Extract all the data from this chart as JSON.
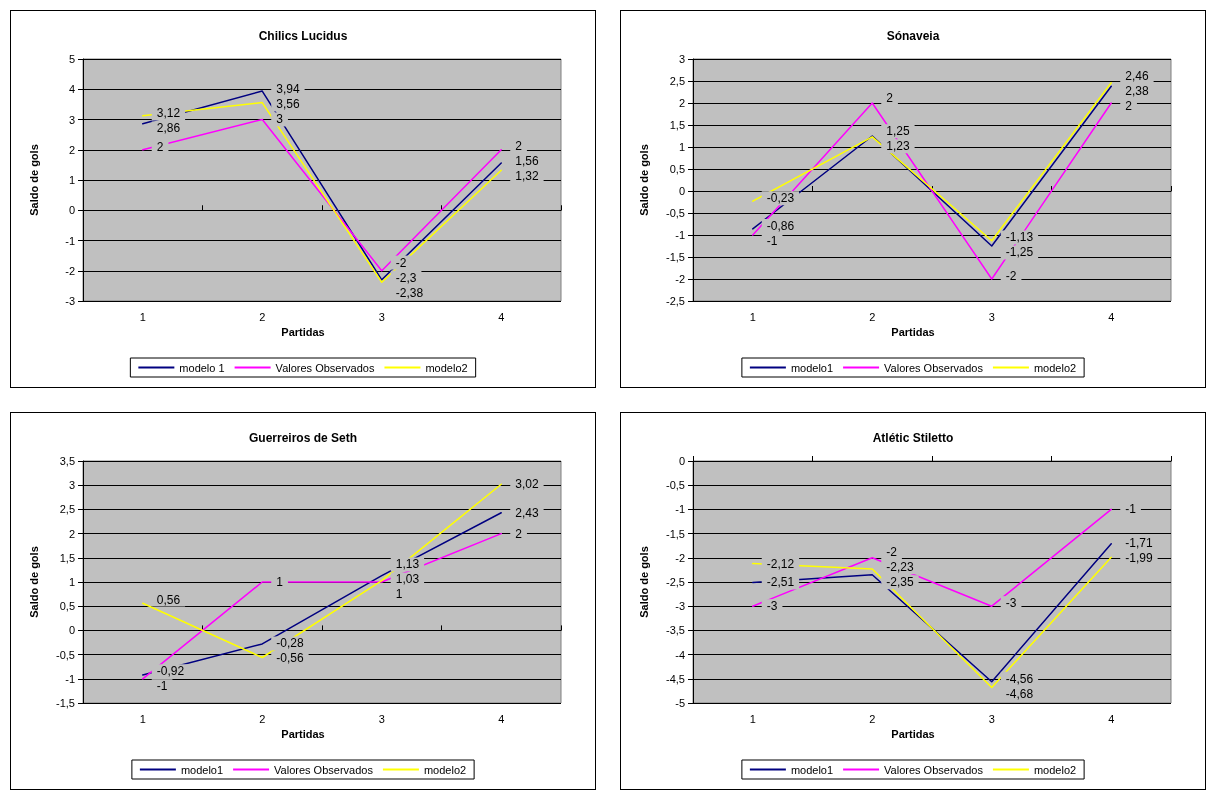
{
  "chart_data": [
    {
      "type": "line",
      "title": "Chilics Lucidus",
      "xlabel": "Partidas",
      "ylabel": "Saldo de gols",
      "categories": [
        "1",
        "2",
        "3",
        "4"
      ],
      "ylim": [
        -3,
        5
      ],
      "yticks": [
        -3,
        -2,
        -1,
        0,
        1,
        2,
        3,
        4,
        5
      ],
      "grid": "y",
      "legend": "bottom",
      "marker": "none",
      "series": [
        {
          "name": "modelo 1",
          "color": "#000080",
          "values": [
            2.86,
            3.94,
            -2.3,
            1.56
          ],
          "value_labels": [
            "2,86",
            "3,94",
            "-2,3",
            "1,56"
          ]
        },
        {
          "name": "Valores Observados",
          "color": "#ff00ff",
          "values": [
            2,
            3,
            -2,
            2
          ],
          "value_labels": [
            "2",
            "3",
            "-2",
            "2"
          ]
        },
        {
          "name": "modelo2",
          "color": "#ffff00",
          "values": [
            3.12,
            3.56,
            -2.38,
            1.32
          ],
          "value_labels": [
            "3,12",
            "3,56",
            "-2,38",
            "1,32"
          ]
        }
      ]
    },
    {
      "type": "line",
      "title": "Sónaveia",
      "xlabel": "Partidas",
      "ylabel": "Saldo de gols",
      "categories": [
        "1",
        "2",
        "3",
        "4"
      ],
      "ylim": [
        -2.5,
        3
      ],
      "yticks": [
        {
          "value": -2.5,
          "label": "-2,5"
        },
        -2,
        {
          "value": -1.5,
          "label": "-1,5"
        },
        -1,
        {
          "value": -0.5,
          "label": "-0,5"
        },
        0,
        {
          "value": 0.5,
          "label": "0,5"
        },
        1,
        {
          "value": 1.5,
          "label": "1,5"
        },
        2,
        {
          "value": 2.5,
          "label": "2,5"
        },
        3
      ],
      "grid": "y",
      "legend": "bottom",
      "marker": "none",
      "series": [
        {
          "name": "modelo1",
          "color": "#000080",
          "values": [
            -0.86,
            1.25,
            -1.25,
            2.38
          ],
          "value_labels": [
            "-0,86",
            "1,25",
            "-1,25",
            "2,38"
          ]
        },
        {
          "name": "Valores Observados",
          "color": "#ff00ff",
          "values": [
            -1,
            2,
            -2,
            2
          ],
          "value_labels": [
            "-1",
            "2",
            "-2",
            "2"
          ]
        },
        {
          "name": "modelo2",
          "color": "#ffff00",
          "values": [
            -0.23,
            1.23,
            -1.13,
            2.46
          ],
          "value_labels": [
            "-0,23",
            "1,23",
            "-1,13",
            "2,46"
          ]
        }
      ]
    },
    {
      "type": "line",
      "title": "Guerreiros de Seth",
      "xlabel": "Partidas",
      "ylabel": "Saldo de gols",
      "categories": [
        "1",
        "2",
        "3",
        "4"
      ],
      "ylim": [
        -1.5,
        3.5
      ],
      "yticks": [
        {
          "value": -1.5,
          "label": "-1,5"
        },
        -1,
        {
          "value": -0.5,
          "label": "-0,5"
        },
        0,
        {
          "value": 0.5,
          "label": "0,5"
        },
        1,
        {
          "value": 1.5,
          "label": "1,5"
        },
        2,
        {
          "value": 2.5,
          "label": "2,5"
        },
        3,
        {
          "value": 3.5,
          "label": "3,5"
        }
      ],
      "grid": "y",
      "legend": "bottom",
      "marker": "none",
      "series": [
        {
          "name": "modelo1",
          "color": "#000080",
          "values": [
            -0.92,
            -0.28,
            1.13,
            2.43
          ],
          "value_labels": [
            "-0,92",
            "-0,28",
            "1,13",
            "2,43"
          ]
        },
        {
          "name": "Valores Observados",
          "color": "#ff00ff",
          "values": [
            -1,
            1,
            1,
            2
          ],
          "value_labels": [
            "-1",
            "1",
            "1",
            "2"
          ]
        },
        {
          "name": "modelo2",
          "color": "#ffff00",
          "values": [
            0.56,
            -0.56,
            1.03,
            3.02
          ],
          "value_labels": [
            "0,56",
            "-0,56",
            "1,03",
            "3,02"
          ]
        }
      ]
    },
    {
      "type": "line",
      "title": "Atlétic Stiletto",
      "xlabel": "Partidas",
      "ylabel": "Saldo de gols",
      "categories": [
        "1",
        "2",
        "3",
        "4"
      ],
      "ylim": [
        -5,
        0
      ],
      "yticks": [
        -5,
        {
          "value": -4.5,
          "label": "-4,5"
        },
        -4,
        {
          "value": -3.5,
          "label": "-3,5"
        },
        -3,
        {
          "value": -2.5,
          "label": "-2,5"
        },
        -2,
        {
          "value": -1.5,
          "label": "-1,5"
        },
        -1,
        {
          "value": -0.5,
          "label": "-0,5"
        },
        0
      ],
      "grid": "y",
      "legend": "bottom",
      "marker": "none",
      "series": [
        {
          "name": "modelo1",
          "color": "#000080",
          "values": [
            -2.51,
            -2.35,
            -4.56,
            -1.71
          ],
          "value_labels": [
            "-2,51",
            "-2,35",
            "-4,56",
            "-1,71"
          ]
        },
        {
          "name": "Valores Observados",
          "color": "#ff00ff",
          "values": [
            -3,
            -2,
            -3,
            -1
          ],
          "value_labels": [
            "-3",
            "-2",
            "-3",
            "-1"
          ]
        },
        {
          "name": "modelo2",
          "color": "#ffff00",
          "values": [
            -2.12,
            -2.23,
            -4.68,
            -1.99
          ],
          "value_labels": [
            "-2,12",
            "-2,23",
            "-4,68",
            "-1,99"
          ]
        }
      ]
    }
  ]
}
